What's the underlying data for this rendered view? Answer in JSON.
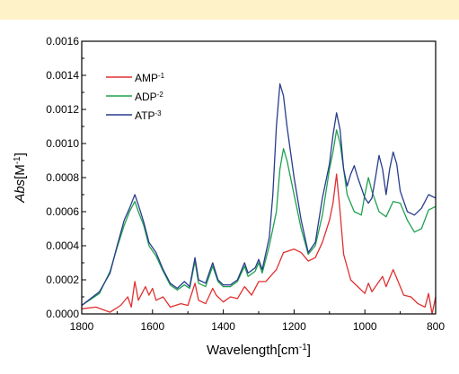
{
  "colors": {
    "top_band": "#fdf2c8"
  },
  "chart_data": {
    "type": "line",
    "x_reversed": true,
    "xlim": [
      1800,
      800
    ],
    "ylim": [
      0,
      0.0016
    ],
    "x_ticks": [
      1800,
      1600,
      1400,
      1200,
      1000,
      800
    ],
    "x_tick_labels": [
      "1800",
      "1600",
      "1400",
      "1200",
      "1000",
      "800"
    ],
    "y_ticks": [
      0,
      0.0002,
      0.0004,
      0.0006,
      0.0008,
      0.001,
      0.0012,
      0.0014,
      0.0016
    ],
    "y_tick_labels": [
      "0.0000",
      "0.0002",
      "0.0004",
      "0.0006",
      "0.0008",
      "0.0010",
      "0.0012",
      "0.0014",
      "0.0016"
    ],
    "xlabel": {
      "main": "Wavelength[cm",
      "sup": "-1",
      "tail": "]"
    },
    "ylabel": {
      "italic": "Abs",
      "main": "[M",
      "sup": "-1",
      "tail": "]"
    },
    "grid": false,
    "legend_position": "top-left",
    "series": [
      {
        "name": "AMP",
        "sup": "-1",
        "color": "#e03030",
        "points": [
          [
            1800,
            3e-05
          ],
          [
            1760,
            4e-05
          ],
          [
            1720,
            1e-05
          ],
          [
            1690,
            5e-05
          ],
          [
            1670,
            0.0001
          ],
          [
            1660,
            4e-05
          ],
          [
            1650,
            0.00019
          ],
          [
            1640,
            8e-05
          ],
          [
            1620,
            0.00016
          ],
          [
            1610,
            0.00011
          ],
          [
            1600,
            0.00015
          ],
          [
            1590,
            8e-05
          ],
          [
            1570,
            0.0001
          ],
          [
            1550,
            4e-05
          ],
          [
            1520,
            6e-05
          ],
          [
            1500,
            5e-05
          ],
          [
            1480,
            0.00018
          ],
          [
            1470,
            8e-05
          ],
          [
            1450,
            6e-05
          ],
          [
            1430,
            0.00015
          ],
          [
            1420,
            0.00011
          ],
          [
            1400,
            7e-05
          ],
          [
            1380,
            0.0001
          ],
          [
            1360,
            9e-05
          ],
          [
            1340,
            0.00016
          ],
          [
            1320,
            0.00011
          ],
          [
            1300,
            0.00019
          ],
          [
            1280,
            0.00019
          ],
          [
            1250,
            0.00026
          ],
          [
            1230,
            0.00036
          ],
          [
            1200,
            0.00038
          ],
          [
            1180,
            0.00036
          ],
          [
            1160,
            0.00031
          ],
          [
            1140,
            0.00033
          ],
          [
            1120,
            0.00042
          ],
          [
            1100,
            0.00055
          ],
          [
            1090,
            0.00065
          ],
          [
            1080,
            0.00082
          ],
          [
            1070,
            0.0006
          ],
          [
            1060,
            0.00035
          ],
          [
            1040,
            0.0002
          ],
          [
            1020,
            0.00016
          ],
          [
            1000,
            0.00012
          ],
          [
            990,
            0.00018
          ],
          [
            980,
            0.00013
          ],
          [
            960,
            0.00019
          ],
          [
            950,
            0.00022
          ],
          [
            940,
            0.00016
          ],
          [
            920,
            0.00026
          ],
          [
            910,
            0.00021
          ],
          [
            890,
            0.00011
          ],
          [
            870,
            0.0001
          ],
          [
            850,
            6e-05
          ],
          [
            830,
            4e-05
          ],
          [
            820,
            0.00012
          ],
          [
            810,
            0.0
          ],
          [
            800,
            0.0001
          ]
        ]
      },
      {
        "name": "ADP",
        "sup": "-2",
        "color": "#20a050",
        "points": [
          [
            1800,
            5e-05
          ],
          [
            1750,
            0.00012
          ],
          [
            1720,
            0.00025
          ],
          [
            1700,
            0.00039
          ],
          [
            1680,
            0.00052
          ],
          [
            1665,
            0.0006
          ],
          [
            1650,
            0.00066
          ],
          [
            1640,
            0.0006
          ],
          [
            1625,
            0.00052
          ],
          [
            1610,
            0.0004
          ],
          [
            1590,
            0.00034
          ],
          [
            1570,
            0.00025
          ],
          [
            1550,
            0.00017
          ],
          [
            1530,
            0.00014
          ],
          [
            1510,
            0.00017
          ],
          [
            1495,
            0.00015
          ],
          [
            1480,
            0.00031
          ],
          [
            1470,
            0.00018
          ],
          [
            1450,
            0.00016
          ],
          [
            1430,
            0.00028
          ],
          [
            1415,
            0.00019
          ],
          [
            1400,
            0.00016
          ],
          [
            1380,
            0.00016
          ],
          [
            1360,
            0.00019
          ],
          [
            1340,
            0.00028
          ],
          [
            1330,
            0.00022
          ],
          [
            1310,
            0.00025
          ],
          [
            1300,
            0.0003
          ],
          [
            1290,
            0.00024
          ],
          [
            1270,
            0.0004
          ],
          [
            1250,
            0.0006
          ],
          [
            1240,
            0.00085
          ],
          [
            1230,
            0.00097
          ],
          [
            1220,
            0.0009
          ],
          [
            1200,
            0.0007
          ],
          [
            1180,
            0.0005
          ],
          [
            1160,
            0.00035
          ],
          [
            1140,
            0.0004
          ],
          [
            1120,
            0.00058
          ],
          [
            1100,
            0.00085
          ],
          [
            1090,
            0.00095
          ],
          [
            1080,
            0.00108
          ],
          [
            1070,
            0.001
          ],
          [
            1060,
            0.00085
          ],
          [
            1050,
            0.0007
          ],
          [
            1030,
            0.0006
          ],
          [
            1010,
            0.00058
          ],
          [
            1000,
            0.0007
          ],
          [
            990,
            0.0008
          ],
          [
            980,
            0.00072
          ],
          [
            960,
            0.0006
          ],
          [
            940,
            0.00057
          ],
          [
            920,
            0.00066
          ],
          [
            900,
            0.00065
          ],
          [
            880,
            0.00055
          ],
          [
            860,
            0.00048
          ],
          [
            840,
            0.0005
          ],
          [
            820,
            0.00061
          ],
          [
            800,
            0.00063
          ]
        ]
      },
      {
        "name": "ATP",
        "sup": "-3",
        "color": "#283c8c",
        "points": [
          [
            1800,
            5e-05
          ],
          [
            1750,
            0.00013
          ],
          [
            1720,
            0.00024
          ],
          [
            1700,
            0.0004
          ],
          [
            1680,
            0.00055
          ],
          [
            1665,
            0.00062
          ],
          [
            1650,
            0.0007
          ],
          [
            1640,
            0.00064
          ],
          [
            1625,
            0.00054
          ],
          [
            1610,
            0.00042
          ],
          [
            1590,
            0.00036
          ],
          [
            1570,
            0.00026
          ],
          [
            1550,
            0.00018
          ],
          [
            1530,
            0.00015
          ],
          [
            1510,
            0.00019
          ],
          [
            1495,
            0.00016
          ],
          [
            1480,
            0.00033
          ],
          [
            1470,
            0.0002
          ],
          [
            1450,
            0.00018
          ],
          [
            1430,
            0.0003
          ],
          [
            1415,
            0.0002
          ],
          [
            1400,
            0.00017
          ],
          [
            1380,
            0.00017
          ],
          [
            1360,
            0.0002
          ],
          [
            1340,
            0.0003
          ],
          [
            1330,
            0.00024
          ],
          [
            1310,
            0.00027
          ],
          [
            1300,
            0.00032
          ],
          [
            1290,
            0.00026
          ],
          [
            1270,
            0.00045
          ],
          [
            1260,
            0.0007
          ],
          [
            1250,
            0.0011
          ],
          [
            1240,
            0.00135
          ],
          [
            1230,
            0.00128
          ],
          [
            1220,
            0.0011
          ],
          [
            1200,
            0.0008
          ],
          [
            1180,
            0.00055
          ],
          [
            1160,
            0.00036
          ],
          [
            1140,
            0.00042
          ],
          [
            1120,
            0.00068
          ],
          [
            1100,
            0.00088
          ],
          [
            1090,
            0.00105
          ],
          [
            1080,
            0.00118
          ],
          [
            1070,
            0.00108
          ],
          [
            1060,
            0.00085
          ],
          [
            1050,
            0.00075
          ],
          [
            1040,
            0.00082
          ],
          [
            1030,
            0.00087
          ],
          [
            1020,
            0.0008
          ],
          [
            1000,
            0.00068
          ],
          [
            990,
            0.00065
          ],
          [
            980,
            0.00068
          ],
          [
            970,
            0.0008
          ],
          [
            960,
            0.00093
          ],
          [
            950,
            0.00085
          ],
          [
            940,
            0.0007
          ],
          [
            930,
            0.00085
          ],
          [
            920,
            0.00095
          ],
          [
            910,
            0.00088
          ],
          [
            900,
            0.00072
          ],
          [
            880,
            0.0006
          ],
          [
            860,
            0.00058
          ],
          [
            840,
            0.00062
          ],
          [
            820,
            0.0007
          ],
          [
            800,
            0.00068
          ]
        ]
      }
    ]
  }
}
